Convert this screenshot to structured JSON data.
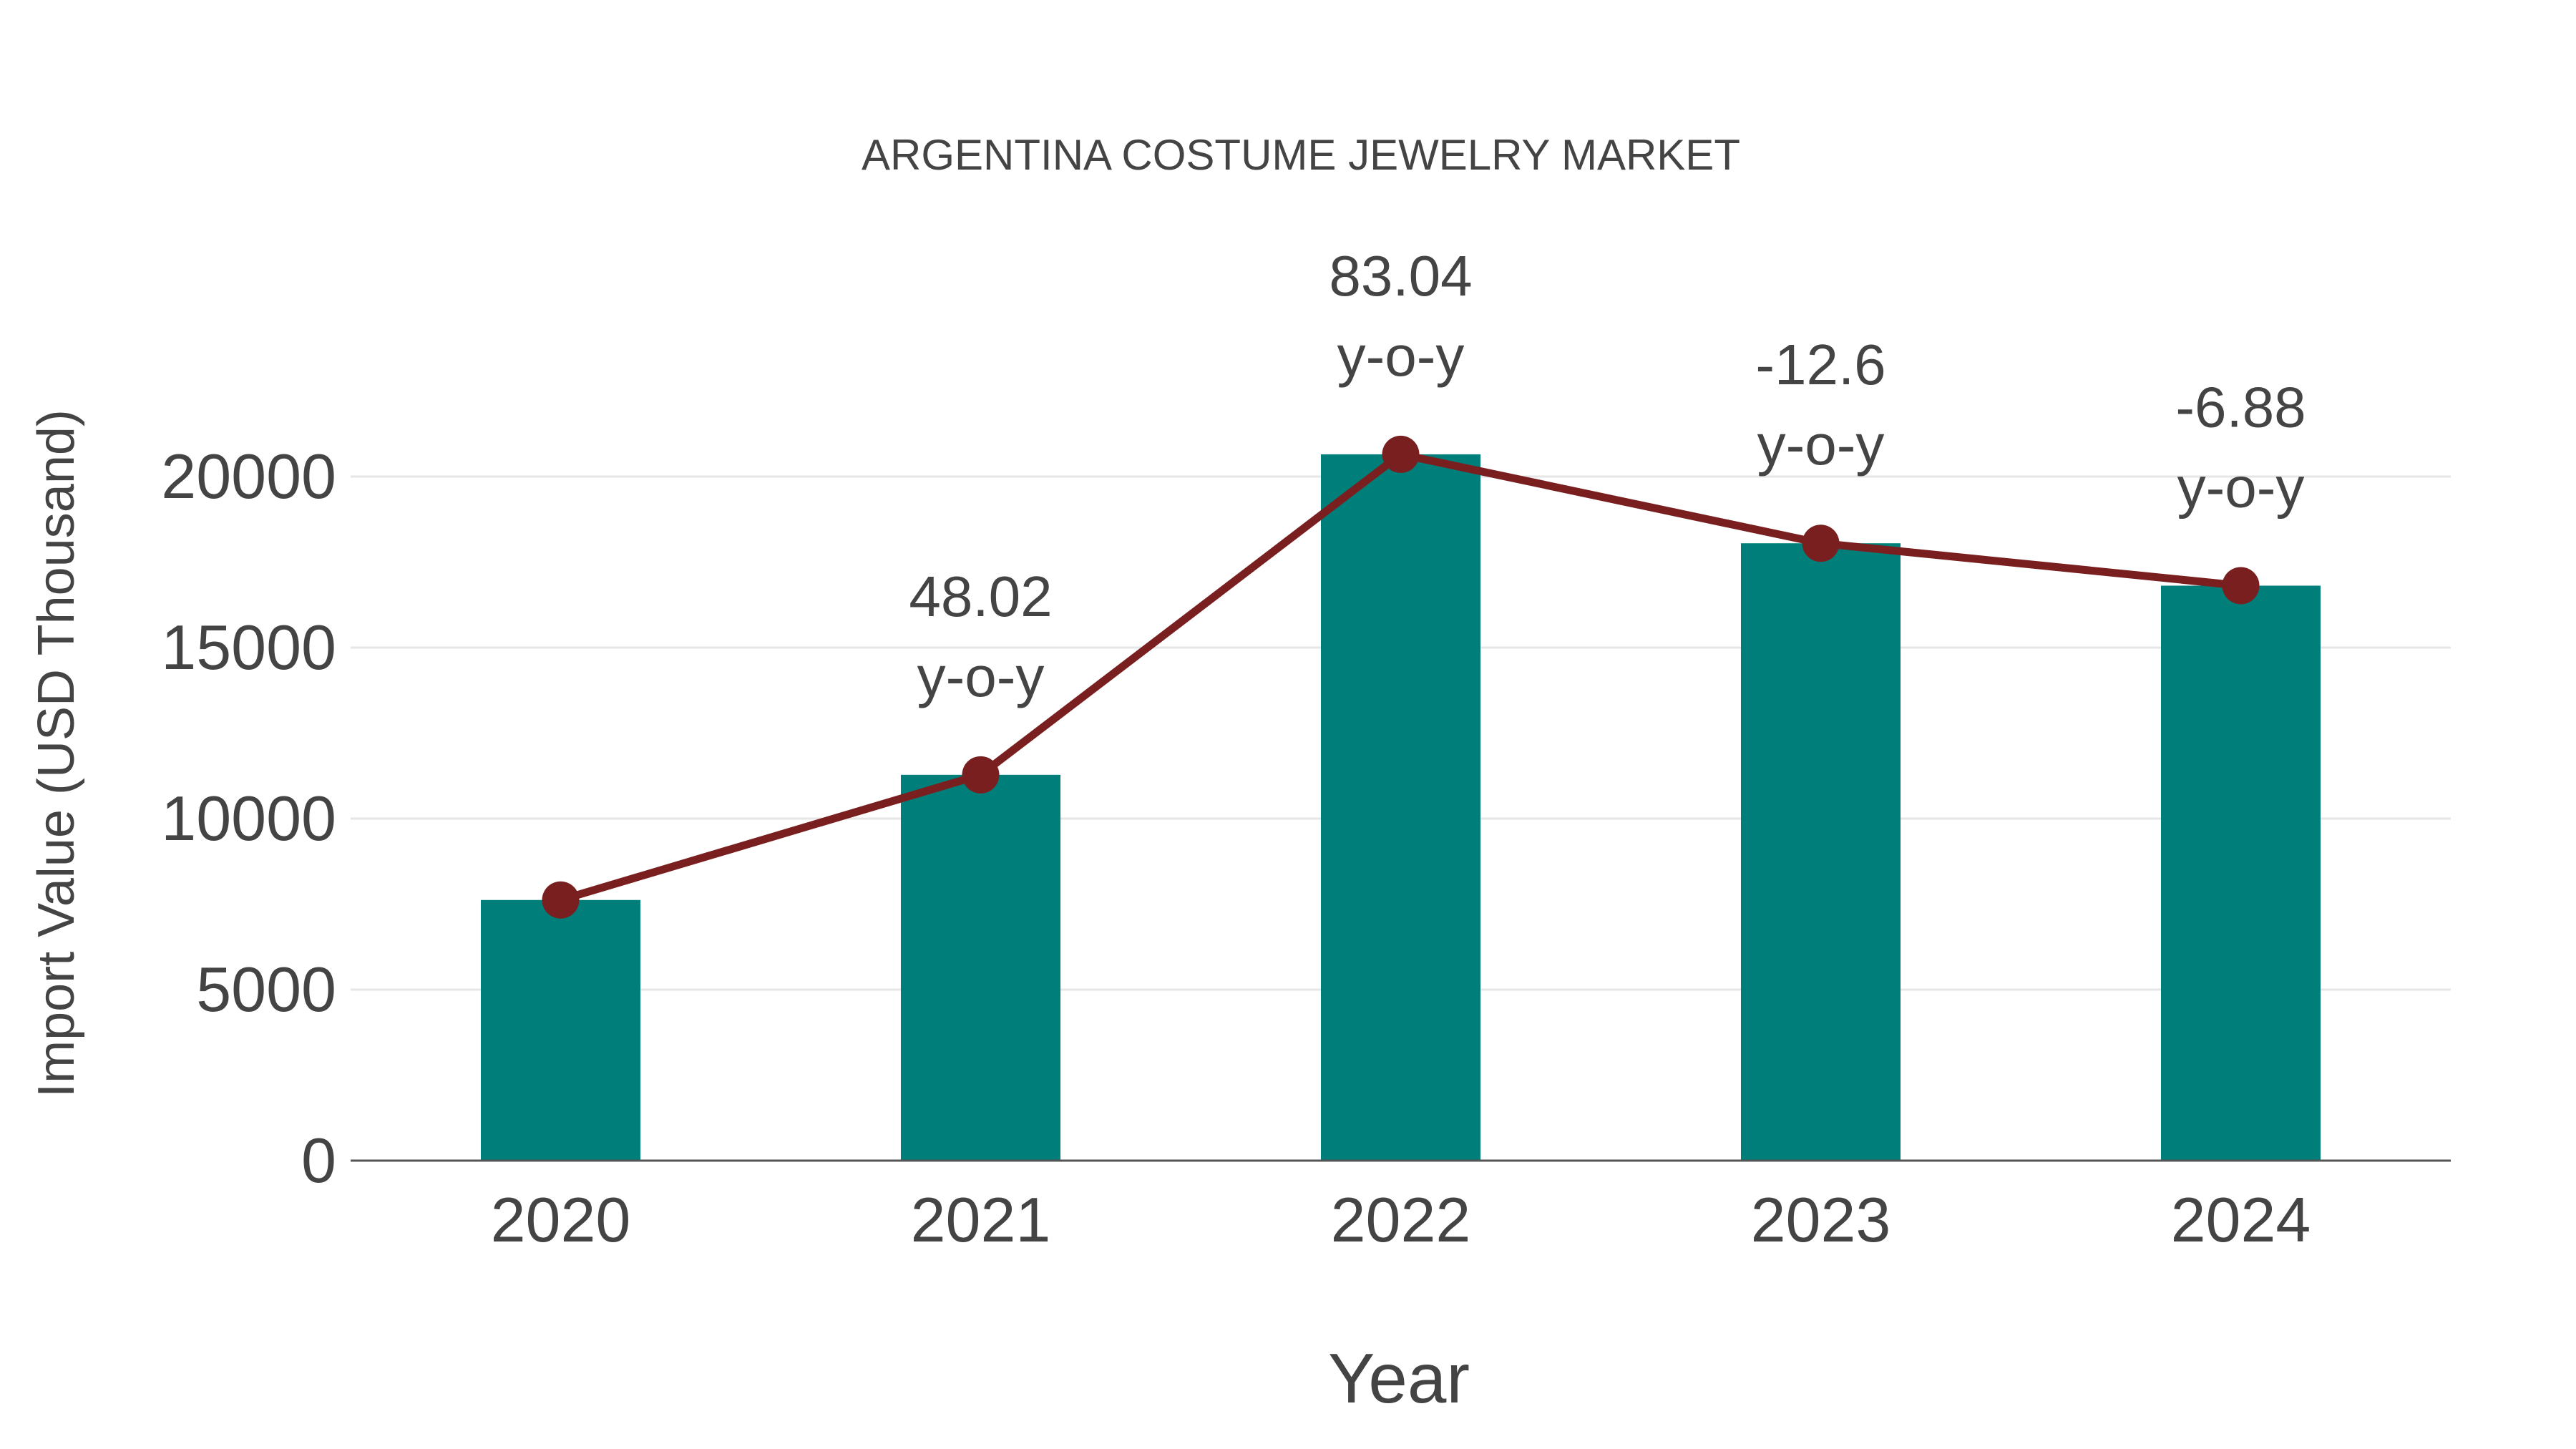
{
  "chart_data": {
    "type": "bar",
    "title": "ARGENTINA COSTUME JEWELRY MARKET",
    "xlabel": "Year",
    "ylabel": "Import Value (USD Thousand)",
    "categories": [
      "2020",
      "2021",
      "2022",
      "2023",
      "2024"
    ],
    "series": [
      {
        "name": "Import Value",
        "type": "bar",
        "color": "#007f7a",
        "values": [
          7620,
          11280,
          20650,
          18050,
          16810
        ]
      },
      {
        "name": "Import Value trend",
        "type": "line",
        "color": "#7a1f1f",
        "values": [
          7620,
          11280,
          20650,
          18050,
          16810
        ]
      }
    ],
    "annotations": [
      {
        "category": "2021",
        "value": "48.02",
        "suffix": "y-o-y"
      },
      {
        "category": "2022",
        "value": "83.04",
        "suffix": "y-o-y"
      },
      {
        "category": "2023",
        "value": "-12.6",
        "suffix": "y-o-y"
      },
      {
        "category": "2024",
        "value": "-6.88",
        "suffix": "y-o-y"
      }
    ],
    "yticks": [
      0,
      5000,
      10000,
      15000,
      20000
    ],
    "ylim": [
      0,
      22000
    ],
    "grid": true,
    "legend": null
  },
  "colors": {
    "bar": "#007f7a",
    "line": "#7a1f1f",
    "grid": "#e6e6e6",
    "axis": "#555555",
    "text": "#444444"
  }
}
